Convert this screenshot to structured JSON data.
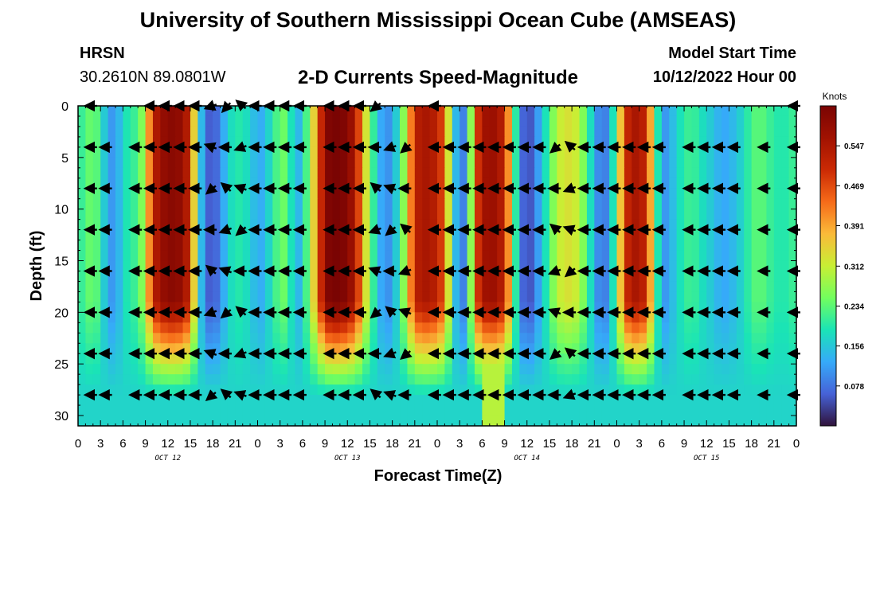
{
  "page": {
    "title": "University of Southern Mississippi Ocean Cube (AMSEAS)",
    "bottom_title": "University of Southern Mississippi Ocean Cube (AMSEAS)",
    "station": "HRSN",
    "coords": "30.2610N  89.0801W",
    "subtitle": "2-D Currents Speed-Magnitude",
    "model_start_label": "Model Start Time",
    "model_start_value": "10/12/2022 Hour 00"
  },
  "chart_data": {
    "type": "heatmap",
    "title": "2-D Currents Speed-Magnitude",
    "xlabel": "Forecast Time(Z)",
    "ylabel": "Depth (ft)",
    "xlim": [
      0,
      96
    ],
    "ylim": [
      31,
      0
    ],
    "x_ticks": [
      "0",
      "3",
      "6",
      "9",
      "12",
      "15",
      "18",
      "21",
      "0",
      "3",
      "6",
      "9",
      "12",
      "15",
      "18",
      "21",
      "0",
      "3",
      "6",
      "9",
      "12",
      "15",
      "18",
      "21",
      "0",
      "3",
      "6",
      "9",
      "12",
      "15",
      "18",
      "21",
      "0"
    ],
    "y_ticks": [
      "0",
      "5",
      "10",
      "15",
      "20",
      "25",
      "30"
    ],
    "day_labels": [
      "OCT 12",
      "OCT 13",
      "OCT 14",
      "OCT 15"
    ],
    "colorbar": {
      "label": "Knots",
      "ticks": [
        "0.078",
        "0.156",
        "0.234",
        "0.312",
        "0.391",
        "0.469",
        "0.547"
      ],
      "range": [
        0.0,
        0.625
      ]
    },
    "speed_profile_knots": [
      [
        0,
        0.2
      ],
      [
        1,
        0.22
      ],
      [
        2,
        0.26
      ],
      [
        3,
        0.2
      ],
      [
        4,
        0.12
      ],
      [
        5,
        0.1
      ],
      [
        6,
        0.18
      ],
      [
        7,
        0.2
      ],
      [
        8,
        0.22
      ],
      [
        9,
        0.3
      ],
      [
        10,
        0.52
      ],
      [
        11,
        0.57
      ],
      [
        12,
        0.6
      ],
      [
        13,
        0.6
      ],
      [
        14,
        0.58
      ],
      [
        15,
        0.5
      ],
      [
        16,
        0.2
      ],
      [
        17,
        0.08
      ],
      [
        18,
        0.04
      ],
      [
        19,
        0.1
      ],
      [
        20,
        0.16
      ],
      [
        21,
        0.2
      ],
      [
        22,
        0.19
      ],
      [
        23,
        0.17
      ],
      [
        24,
        0.12
      ],
      [
        25,
        0.14
      ],
      [
        26,
        0.2
      ],
      [
        27,
        0.24
      ],
      [
        28,
        0.25
      ],
      [
        29,
        0.12
      ],
      [
        30,
        0.16
      ],
      [
        31,
        0.28
      ],
      [
        32,
        0.42
      ],
      [
        33,
        0.6
      ],
      [
        34,
        0.63
      ],
      [
        35,
        0.63
      ],
      [
        36,
        0.6
      ],
      [
        37,
        0.55
      ],
      [
        38,
        0.4
      ],
      [
        39,
        0.25
      ],
      [
        40,
        0.16
      ],
      [
        41,
        0.09
      ],
      [
        42,
        0.12
      ],
      [
        43,
        0.2
      ],
      [
        44,
        0.33
      ],
      [
        45,
        0.52
      ],
      [
        46,
        0.55
      ],
      [
        47,
        0.55
      ],
      [
        48,
        0.52
      ],
      [
        49,
        0.45
      ],
      [
        50,
        0.2
      ],
      [
        51,
        0.08
      ],
      [
        52,
        0.1
      ],
      [
        53,
        0.44
      ],
      [
        54,
        0.55
      ],
      [
        55,
        0.58
      ],
      [
        56,
        0.56
      ],
      [
        57,
        0.52
      ],
      [
        58,
        0.3
      ],
      [
        59,
        0.1
      ],
      [
        60,
        0.03
      ],
      [
        61,
        0.08
      ],
      [
        62,
        0.15
      ],
      [
        63,
        0.22
      ],
      [
        64,
        0.3
      ],
      [
        65,
        0.33
      ],
      [
        66,
        0.33
      ],
      [
        67,
        0.3
      ],
      [
        68,
        0.22
      ],
      [
        69,
        0.14
      ],
      [
        70,
        0.06
      ],
      [
        71,
        0.12
      ],
      [
        72,
        0.25
      ],
      [
        73,
        0.48
      ],
      [
        74,
        0.55
      ],
      [
        75,
        0.55
      ],
      [
        76,
        0.5
      ],
      [
        77,
        0.28
      ],
      [
        78,
        0.1
      ],
      [
        79,
        0.12
      ],
      [
        80,
        0.17
      ],
      [
        81,
        0.2
      ],
      [
        82,
        0.22
      ],
      [
        83,
        0.19
      ],
      [
        84,
        0.17
      ],
      [
        85,
        0.15
      ],
      [
        86,
        0.12
      ],
      [
        87,
        0.13
      ],
      [
        88,
        0.15
      ],
      [
        89,
        0.18
      ],
      [
        90,
        0.22
      ],
      [
        91,
        0.24
      ],
      [
        92,
        0.22
      ],
      [
        93,
        0.2
      ],
      [
        94,
        0.19
      ],
      [
        95,
        0.2
      ],
      [
        96,
        0.22
      ]
    ],
    "arrow_depths_ft": [
      0,
      4,
      8,
      12,
      16,
      20,
      24,
      28
    ],
    "arrow_hours": [
      2,
      4,
      8,
      10,
      12,
      14,
      16,
      18,
      20,
      22,
      24,
      26,
      28,
      30,
      34,
      36,
      38,
      40,
      42,
      44,
      48,
      50,
      52,
      54,
      56,
      58,
      60,
      62,
      64,
      66,
      68,
      70,
      72,
      74,
      76,
      78,
      82,
      84,
      86,
      88,
      92,
      96
    ],
    "arrow_direction": "mostly westward"
  }
}
